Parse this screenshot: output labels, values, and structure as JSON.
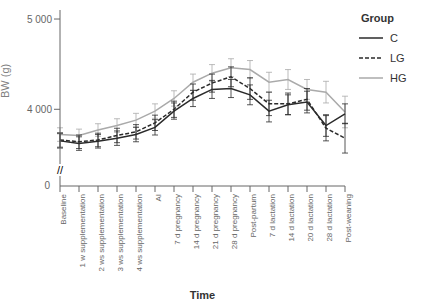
{
  "chart_data": {
    "type": "line",
    "xlabel": "Time",
    "ylabel": "BW (g)",
    "legend_title": "Group",
    "legend": "right",
    "categories": [
      "Baseline",
      "1 w supplementation",
      "2 ws supplementation",
      "3 ws supplementation",
      "4 ws supplementation",
      "AI",
      "7 d pregnancy",
      "14 d pregnancy",
      "21 d pregnancy",
      "28 d pregnancy",
      "Post-partum",
      "7 d lactation",
      "14 d lactation",
      "20 d lactation",
      "28 d lactation",
      "Post-weaning"
    ],
    "series": [
      {
        "name": "C",
        "color": "#2b2b2b",
        "line_style": "solid",
        "values": [
          3650,
          3620,
          3645,
          3680,
          3720,
          3800,
          3980,
          4120,
          4220,
          4230,
          4160,
          3980,
          4050,
          4080,
          3820,
          3950
        ],
        "errors": [
          80,
          75,
          75,
          80,
          80,
          85,
          90,
          90,
          100,
          100,
          110,
          120,
          110,
          120,
          120,
          110
        ]
      },
      {
        "name": "LG",
        "color": "#2b2b2b",
        "line_style": "dashed",
        "values": [
          3660,
          3640,
          3660,
          3710,
          3750,
          3850,
          4000,
          4190,
          4290,
          4360,
          4230,
          4060,
          4060,
          4110,
          3790,
          3680
        ],
        "errors": [
          80,
          75,
          75,
          80,
          80,
          85,
          90,
          90,
          100,
          110,
          120,
          130,
          120,
          120,
          140,
          165
        ]
      },
      {
        "name": "HG",
        "color": "#aaaaaa",
        "line_style": "solid",
        "values": [
          3720,
          3710,
          3770,
          3820,
          3880,
          3980,
          4120,
          4300,
          4400,
          4460,
          4440,
          4300,
          4330,
          4220,
          4190,
          3970
        ],
        "errors": [
          75,
          70,
          70,
          75,
          75,
          80,
          85,
          90,
          95,
          100,
          100,
          110,
          110,
          110,
          120,
          175
        ]
      }
    ],
    "ylim": [
      3150,
      5100
    ],
    "yticks": [
      {
        "value": 4000,
        "label": "4 000"
      },
      {
        "value": 5000,
        "label": "5 000"
      }
    ],
    "axis_break": {
      "tick": 0,
      "symbol": "//"
    }
  }
}
